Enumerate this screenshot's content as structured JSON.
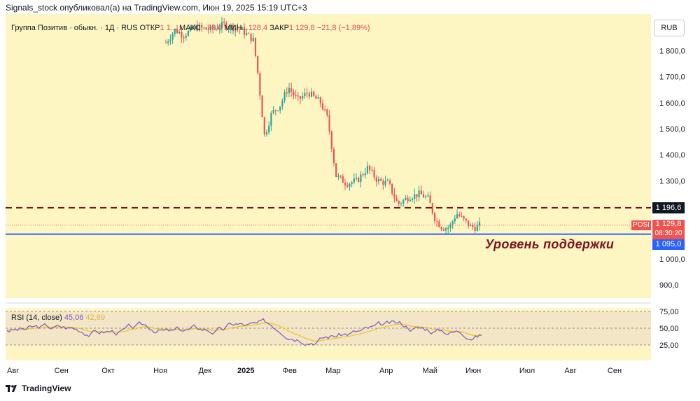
{
  "caption": "Signals_stock опубликовал(а) на TradingView.com, Июн 19, 2025 15:19 UTC+3",
  "legend": {
    "symbol": "Группа Позитив · обыкн. · 1Д · RUS",
    "open_label": "ОТКР",
    "open_value": "1 1...",
    "high_label": "МАКС",
    "high_value": "...73,6",
    "low_label": "МИН",
    "low_value": "...128,4",
    "close_label": "ЗАКР",
    "close_value": "1 129,8",
    "change": "−21,8 (−1,89%)"
  },
  "currency_button": "RUB",
  "support_text": "Уровень поддержки",
  "footer_brand": "TradingView",
  "rsi_legend": {
    "name": "RSI (14, close)",
    "value1": "45,06",
    "value2": "42,89"
  },
  "price_badges": {
    "resistance": "1 196,6",
    "ticker": "POSI",
    "last": "1 129,8",
    "timer": "08:30:20",
    "support": "1 095,0"
  },
  "colors": {
    "background": "#fdf6c3",
    "candle_up": "#26a69a",
    "candle_down": "#ef5350",
    "resistance": "#7b1420",
    "support": "#2962ff",
    "rsi_line": "#7e57c2",
    "rsi_ma": "#f0c419"
  },
  "chart_data": {
    "type": "candlestick",
    "title": "Группа Позитив · обыкн. · 1Д · RUS",
    "price_axis": {
      "ticks": [
        900,
        1000,
        1100,
        1200,
        1300,
        1400,
        1500,
        1600,
        1700,
        1800
      ],
      "tick_labels": [
        "900,0",
        "1 000,0",
        "",
        "",
        "1 300,0",
        "1 400,0",
        "1 500,0",
        "1 600,0",
        "1 700,0",
        "1 800,0"
      ],
      "ylim": [
        810,
        1910
      ]
    },
    "rsi_axis": {
      "ticks": [
        25,
        50,
        75
      ],
      "tick_labels": [
        "25,00",
        "50,00",
        "75,00"
      ],
      "ylim": [
        10,
        80
      ]
    },
    "x_axis": {
      "labels": [
        "Авг",
        "Сен",
        "Окт",
        "Ноя",
        "Дек",
        "2025",
        "Фев",
        "Мар",
        "Апр",
        "Май",
        "Июн",
        "Июл",
        "Авг",
        "Сен"
      ],
      "months_offset": [
        0.55,
        1.65,
        2.75,
        3.95,
        5.0,
        5.9,
        6.95,
        7.95,
        9.2,
        10.2,
        11.2,
        12.45,
        13.5,
        14.5
      ]
    },
    "horizontal_levels": [
      {
        "value": 1196.6,
        "style": "dashed",
        "color": "#7b1420"
      },
      {
        "value": 1095.0,
        "style": "solid",
        "color": "#2962ff"
      },
      {
        "value": 1129.8,
        "style": "dotted",
        "color": "#ef5350"
      }
    ],
    "annotation": "Уровень поддержки",
    "last_close": 1129.8,
    "rsi_last": 45.06,
    "rsi_ma_last": 42.89
  }
}
